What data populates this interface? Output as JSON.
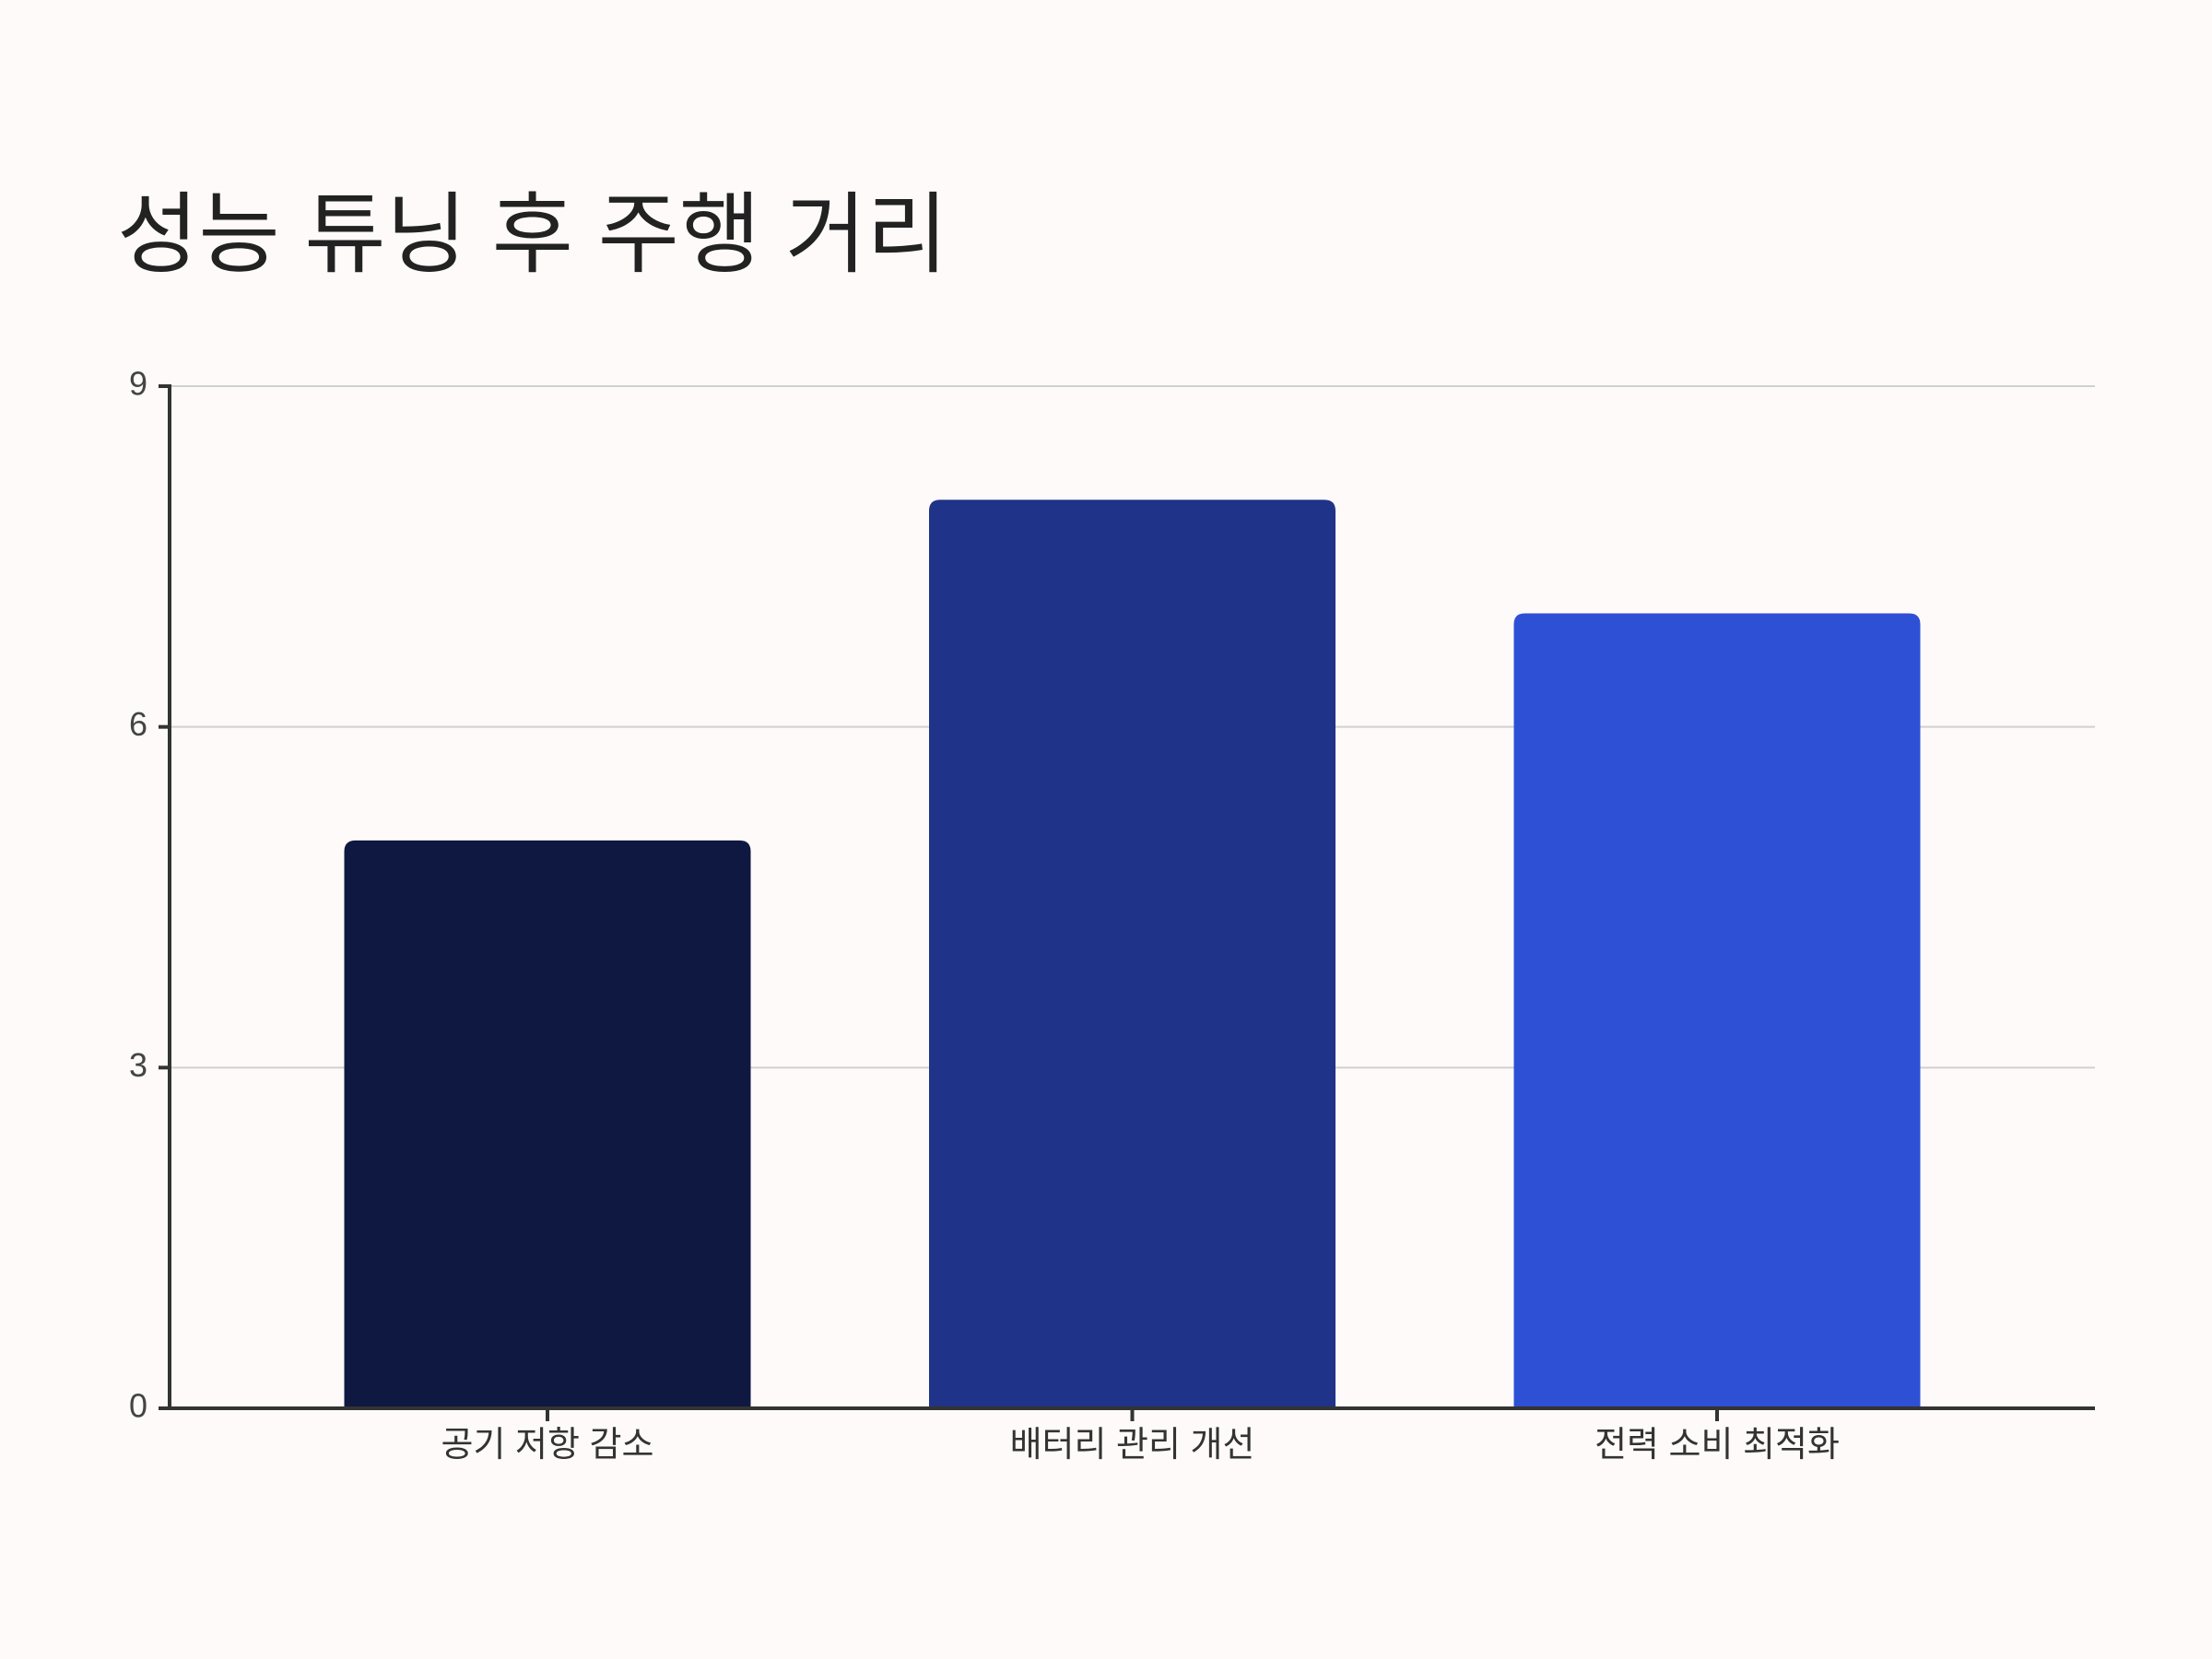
{
  "chart_data": {
    "type": "bar",
    "title": "성능 튜닝 후 주행 거리",
    "categories": [
      "공기 저항 감소",
      "배터리 관리 개선",
      "전력 소비 최적화"
    ],
    "values": [
      5,
      8,
      7
    ],
    "colors": [
      "#0f1840",
      "#1f3488",
      "#2e50d4"
    ],
    "ylim": [
      0,
      9
    ],
    "yticks": [
      0,
      3,
      6,
      9
    ],
    "grid": true
  }
}
